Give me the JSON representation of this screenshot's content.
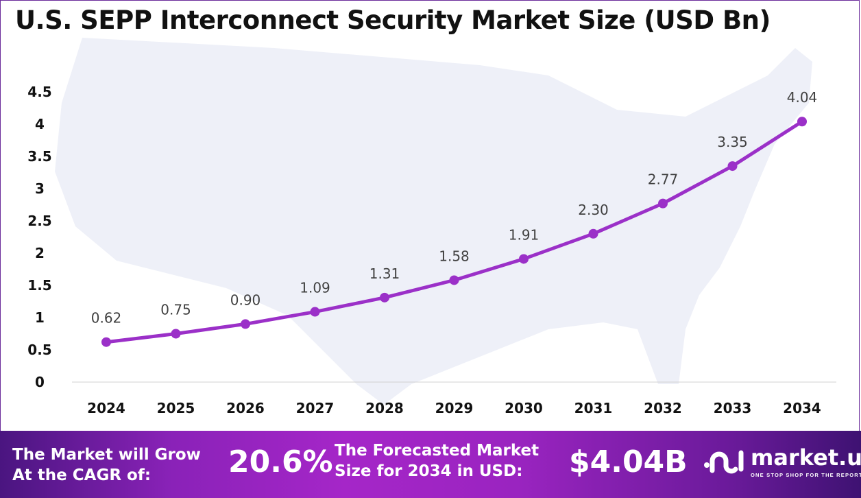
{
  "chart_data": {
    "type": "line",
    "title": "U.S. SEPP Interconnect Security Market Size (USD Bn)",
    "categories": [
      "2024",
      "2025",
      "2026",
      "2027",
      "2028",
      "2029",
      "2030",
      "2031",
      "2032",
      "2033",
      "2034"
    ],
    "values": [
      0.62,
      0.75,
      0.9,
      1.09,
      1.31,
      1.58,
      1.91,
      2.3,
      2.77,
      3.35,
      4.04
    ],
    "data_labels": [
      "0.62",
      "0.75",
      "0.90",
      "1.09",
      "1.31",
      "1.58",
      "1.91",
      "2.30",
      "2.77",
      "3.35",
      "4.04"
    ],
    "yticks": [
      "0",
      "0.5",
      "1",
      "1.5",
      "2",
      "2.5",
      "3",
      "3.5",
      "4",
      "4.5"
    ],
    "ylim": [
      0,
      4.5
    ],
    "grid": false,
    "line_color": "#9b30c8"
  },
  "footer": {
    "cagr_label_1": "The Market will Grow",
    "cagr_label_2": "At the CAGR of:",
    "cagr_value": "20.6%",
    "forecast_label_1": "The Forecasted Market",
    "forecast_label_2": "Size for 2034 in USD:",
    "forecast_value": "$4.04B",
    "brand_name": "market.us",
    "brand_tagline": "ONE STOP SHOP FOR THE REPORTS"
  }
}
